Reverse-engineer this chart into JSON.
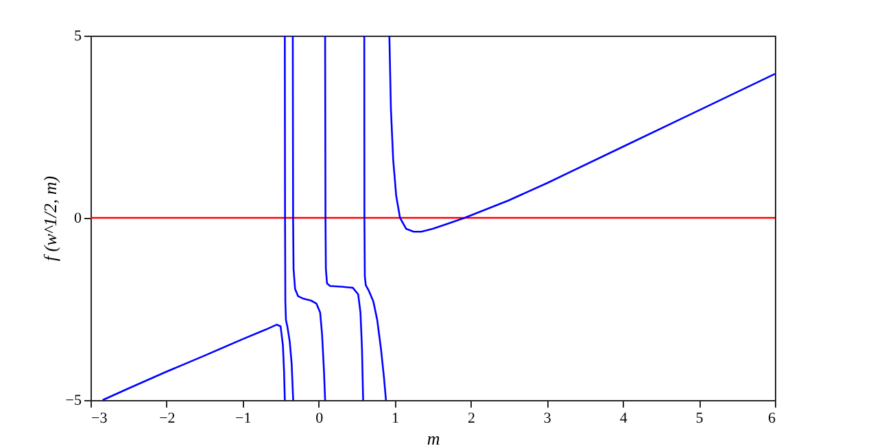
{
  "chart_data": {
    "type": "line",
    "xlabel": "m",
    "ylabel": "f (w^1/2, m)",
    "xlim": [
      -3,
      6
    ],
    "xticks": [
      -3,
      -2,
      -1,
      0,
      1,
      2,
      3,
      4,
      5,
      6
    ],
    "ylim": [
      -5,
      5
    ],
    "yticks": [
      -5,
      0,
      5
    ],
    "grid": false,
    "marker": "none",
    "line_style": "solid",
    "ref_lines": [
      {
        "axis": "y",
        "value": 0,
        "color": "#ff0000"
      }
    ],
    "series": [
      {
        "color": "#0000ff",
        "x": [
          -2.84,
          -2.5,
          -2.0,
          -1.5,
          -1.0,
          -0.7,
          -0.55,
          -0.5,
          -0.47,
          -0.455,
          -0.445
        ],
        "values": [
          -5,
          -4.68,
          -4.22,
          -3.78,
          -3.33,
          -3.07,
          -2.93,
          -2.98,
          -3.5,
          -4.2,
          -5
        ]
      },
      {
        "color": "#0000ff",
        "x": [
          -0.445,
          -0.442,
          -0.438,
          -0.43,
          -0.41,
          -0.38,
          -0.355,
          -0.335
        ],
        "values": [
          5,
          0,
          -2.3,
          -2.8,
          -3.0,
          -3.4,
          -4.0,
          -5
        ]
      },
      {
        "color": "#0000ff",
        "x": [
          -0.34,
          -0.336,
          -0.33,
          -0.31,
          -0.27,
          -0.2,
          -0.1,
          -0.03,
          0.02,
          0.045,
          0.07,
          0.085
        ],
        "values": [
          5,
          0,
          -1.4,
          -1.95,
          -2.15,
          -2.22,
          -2.27,
          -2.35,
          -2.6,
          -3.2,
          -4.2,
          -5
        ]
      },
      {
        "color": "#0000ff",
        "x": [
          0.085,
          0.09,
          0.095,
          0.11,
          0.15,
          0.3,
          0.45,
          0.52,
          0.55,
          0.57,
          0.585
        ],
        "values": [
          5,
          0,
          -1.4,
          -1.8,
          -1.87,
          -1.89,
          -1.92,
          -2.1,
          -2.6,
          -3.6,
          -5
        ]
      },
      {
        "color": "#0000ff",
        "x": [
          0.6,
          0.602,
          0.607,
          0.62,
          0.66,
          0.72,
          0.77,
          0.82,
          0.86,
          0.885
        ],
        "values": [
          5,
          0,
          -1.6,
          -1.85,
          -2.0,
          -2.3,
          -2.8,
          -3.6,
          -4.4,
          -5
        ]
      },
      {
        "color": "#0000ff",
        "x": [
          0.93,
          0.95,
          0.98,
          1.02,
          1.07,
          1.15,
          1.25,
          1.35,
          1.5,
          1.7,
          1.92,
          2.5,
          3.0,
          4.0,
          5.0,
          6.0
        ],
        "values": [
          5,
          3.0,
          1.6,
          0.6,
          0,
          -0.3,
          -0.38,
          -0.38,
          -0.3,
          -0.16,
          0,
          0.48,
          0.95,
          1.95,
          2.95,
          3.95
        ]
      }
    ]
  }
}
